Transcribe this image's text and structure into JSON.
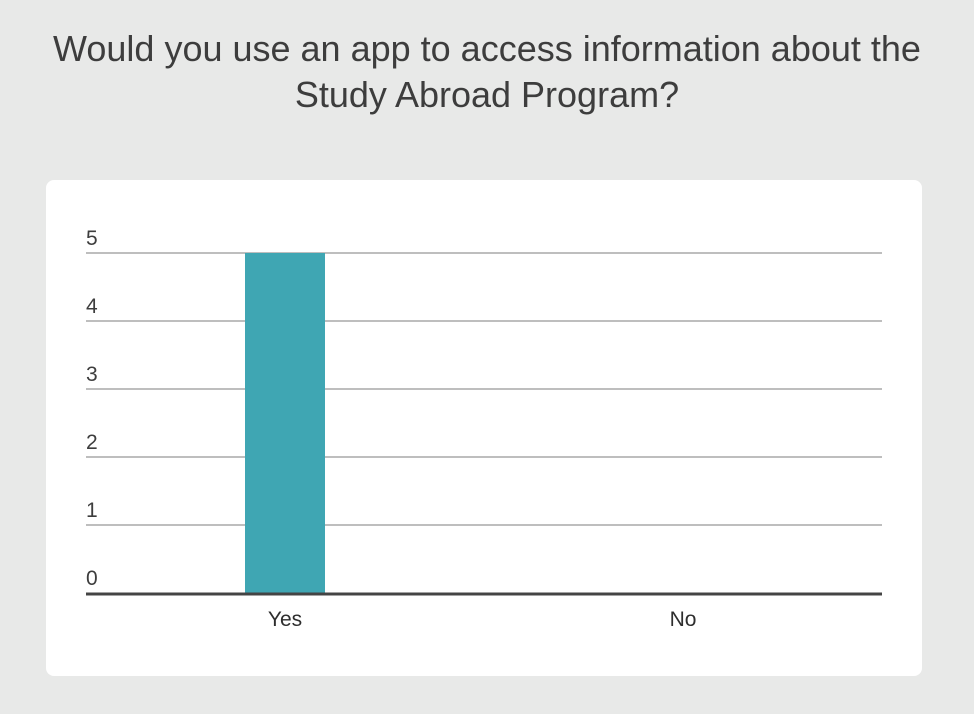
{
  "chart_data": {
    "type": "bar",
    "title": "Would you use an app to access information about the Study Abroad Program?",
    "categories": [
      "Yes",
      "No"
    ],
    "values": [
      5,
      0
    ],
    "ylim": [
      0,
      5
    ],
    "yticks": [
      "0",
      "1",
      "2",
      "3",
      "4",
      "5"
    ],
    "xlabel": "",
    "ylabel": "",
    "grid": true,
    "legend": "none",
    "bar_color": "#3fa6b3",
    "grid_color": "#a9a9a9",
    "axis_color": "#444444"
  }
}
